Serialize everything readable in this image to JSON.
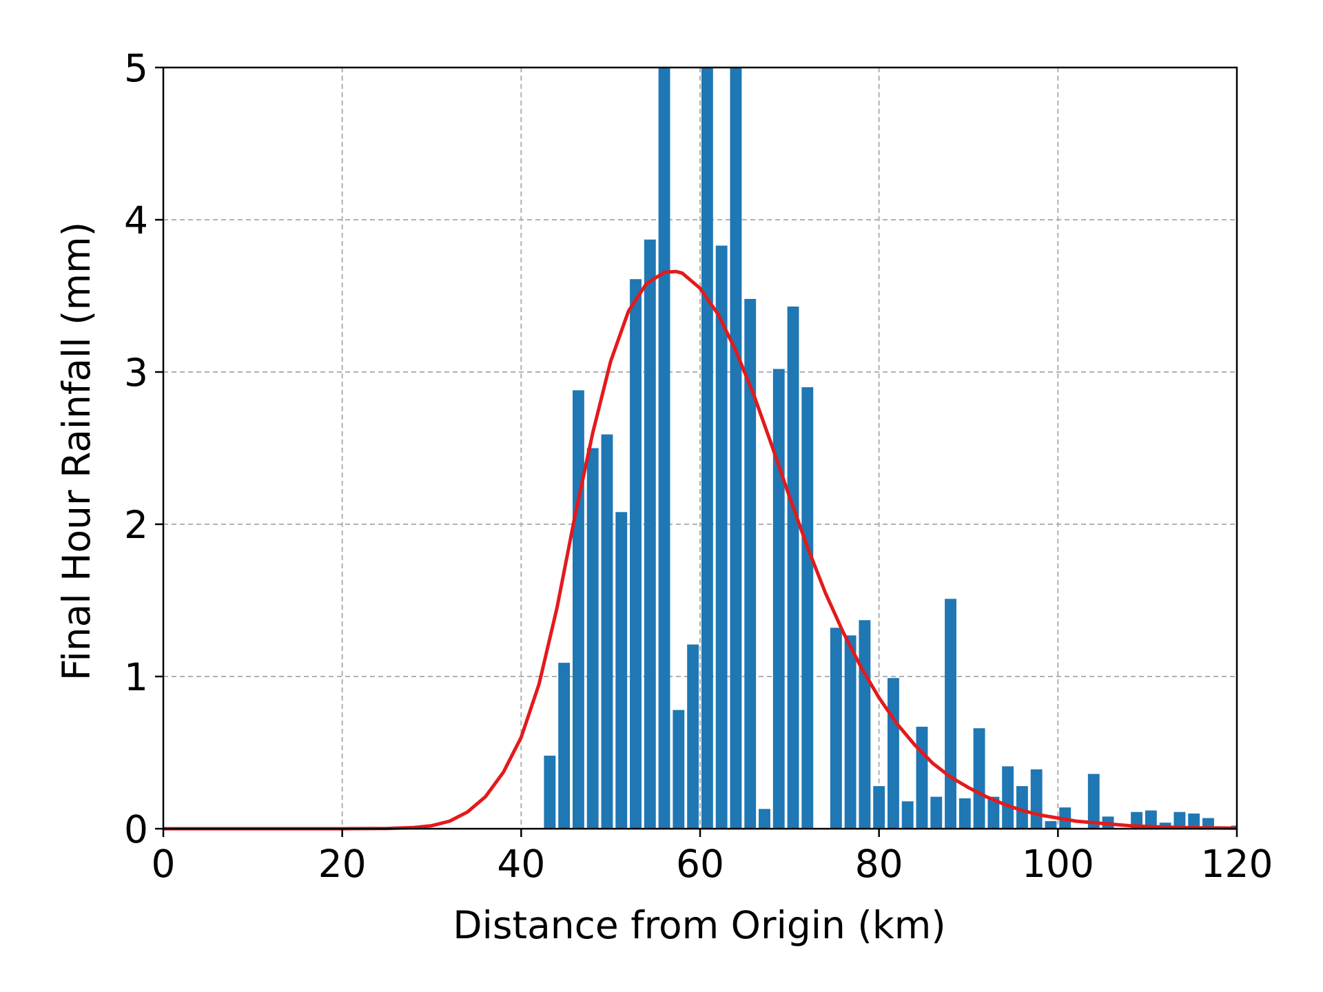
{
  "chart_data": {
    "type": "bar",
    "xlabel": "Distance from Origin (km)",
    "ylabel": "Final Hour Rainfall (mm)",
    "xlim": [
      0,
      120
    ],
    "ylim": [
      0,
      5
    ],
    "xticks": [
      0,
      20,
      40,
      60,
      80,
      100,
      120
    ],
    "yticks": [
      0,
      1,
      2,
      3,
      4,
      5
    ],
    "grid": true,
    "bar_width": 1.3,
    "colors": {
      "bars": "#1f77b4",
      "curve": "#e31a1c",
      "grid": "#b0b0b0",
      "axes": "#000000"
    },
    "bars": {
      "x": [
        43.2,
        44.8,
        46.4,
        48.0,
        49.6,
        51.2,
        52.8,
        54.4,
        56.0,
        57.6,
        59.2,
        60.8,
        62.4,
        64.0,
        65.6,
        67.2,
        68.8,
        70.4,
        72.0,
        73.6,
        75.2,
        76.8,
        78.4,
        80.0,
        81.6,
        83.2,
        84.8,
        86.4,
        88.0,
        89.6,
        91.2,
        92.8,
        94.4,
        96.0,
        97.6,
        99.2,
        100.8,
        102.4,
        104.0,
        105.6,
        107.2,
        108.8,
        110.4,
        112.0,
        113.6,
        115.2,
        116.8,
        118.4,
        120.0
      ],
      "values": [
        0.48,
        1.09,
        2.88,
        2.5,
        2.59,
        2.08,
        3.61,
        3.87,
        5.0,
        0.78,
        1.21,
        5.0,
        3.83,
        5.0,
        3.48,
        0.13,
        3.02,
        3.43,
        2.9,
        0,
        1.32,
        1.27,
        1.37,
        0.28,
        0.99,
        0.18,
        0.67,
        0.21,
        1.51,
        0.2,
        0.66,
        0.21,
        0.41,
        0.28,
        0.39,
        0.05,
        0.14,
        0,
        0.36,
        0.08,
        0,
        0.11,
        0.12,
        0.04,
        0.11,
        0.1,
        0.07,
        0,
        0.02
      ]
    },
    "curve": {
      "type": "line",
      "x": [
        0,
        20,
        25,
        28,
        30,
        32,
        34,
        36,
        38,
        40,
        42,
        44,
        46,
        48,
        50,
        52,
        54,
        56,
        57.3,
        58,
        60,
        62,
        64,
        66,
        68,
        70,
        72,
        74,
        76,
        78,
        80,
        82,
        84,
        86,
        88,
        90,
        92,
        94,
        96,
        98,
        100,
        102,
        104,
        106,
        108,
        110,
        112,
        114,
        116,
        118,
        120
      ],
      "y": [
        0,
        0,
        0.002,
        0.008,
        0.02,
        0.05,
        0.11,
        0.21,
        0.37,
        0.6,
        0.95,
        1.45,
        2.05,
        2.6,
        3.07,
        3.4,
        3.58,
        3.655,
        3.66,
        3.65,
        3.55,
        3.38,
        3.14,
        2.85,
        2.52,
        2.18,
        1.85,
        1.55,
        1.29,
        1.06,
        0.86,
        0.69,
        0.55,
        0.43,
        0.34,
        0.27,
        0.21,
        0.16,
        0.12,
        0.09,
        0.07,
        0.05,
        0.04,
        0.03,
        0.02,
        0.015,
        0.011,
        0.008,
        0.006,
        0.005,
        0.004
      ]
    }
  }
}
